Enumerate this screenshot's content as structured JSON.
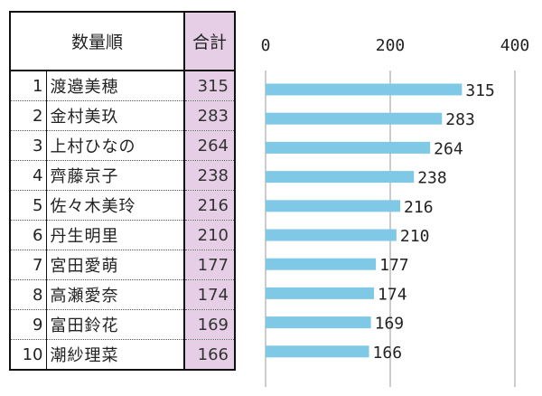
{
  "table": {
    "header_name": "数量順",
    "header_total": "合計",
    "rows": [
      {
        "rank": "1",
        "name": "渡邉美穂",
        "total": "315"
      },
      {
        "rank": "2",
        "name": "金村美玖",
        "total": "283"
      },
      {
        "rank": "3",
        "name": "上村ひなの",
        "total": "264"
      },
      {
        "rank": "4",
        "name": "齊藤京子",
        "total": "238"
      },
      {
        "rank": "5",
        "name": "佐々木美玲",
        "total": "216"
      },
      {
        "rank": "6",
        "name": "丹生明里",
        "total": "210"
      },
      {
        "rank": "7",
        "name": "宮田愛萌",
        "total": "177"
      },
      {
        "rank": "8",
        "name": "高瀬愛奈",
        "total": "174"
      },
      {
        "rank": "9",
        "name": "富田鈴花",
        "total": "169"
      },
      {
        "rank": "10",
        "name": "潮紗理菜",
        "total": "166"
      }
    ]
  },
  "colors": {
    "bar": "#7fc8e6",
    "total_column_bg": "#e6cfe6",
    "grid": "#9a9a9a"
  },
  "chart_data": {
    "type": "bar",
    "orientation": "horizontal",
    "categories": [
      "渡邉美穂",
      "金村美玖",
      "上村ひなの",
      "齊藤京子",
      "佐々木美玲",
      "丹生明里",
      "宮田愛萌",
      "高瀬愛奈",
      "富田鈴花",
      "潮紗理菜"
    ],
    "values": [
      315,
      283,
      264,
      238,
      216,
      210,
      177,
      174,
      169,
      166
    ],
    "xlim": [
      0,
      400
    ],
    "xticks": [
      "0",
      "200",
      "400"
    ],
    "grid": true,
    "data_labels": true,
    "legend": "none"
  }
}
